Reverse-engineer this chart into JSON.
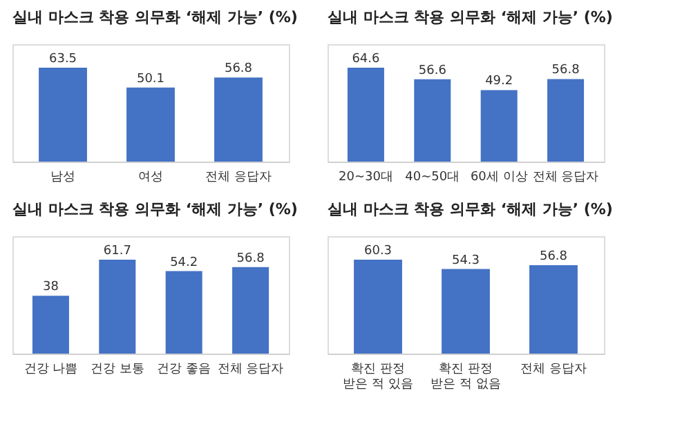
{
  "chart_data": [
    {
      "type": "bar",
      "title": "실내 마스크 착용 의무화 ‘해제 가능’ (%)",
      "categories": [
        "남성",
        "여성",
        "전체 응답자"
      ],
      "values": [
        63.5,
        50.1,
        56.8
      ],
      "color": "#4472c4",
      "data_labels": true,
      "tick_labels": "x",
      "grid": false,
      "legend": false
    },
    {
      "type": "bar",
      "title": "실내 마스크 착용 의무화 ‘해제 가능’ (%)",
      "categories": [
        "20~30대",
        "40~50대",
        "60세 이상",
        "전체 응답자"
      ],
      "values": [
        64.6,
        56.6,
        49.2,
        56.8
      ],
      "color": "#4472c4",
      "data_labels": true,
      "tick_labels": "x",
      "grid": false,
      "legend": false
    },
    {
      "type": "bar",
      "title": "실내 마스크 착용 의무화 ‘해제 가능’ (%)",
      "categories": [
        "건강 나쁨",
        "건강 보통",
        "건강 좋음",
        "전체 응답자"
      ],
      "values": [
        38,
        61.7,
        54.2,
        56.8
      ],
      "color": "#4472c4",
      "data_labels": true,
      "tick_labels": "x",
      "grid": false,
      "legend": false
    },
    {
      "type": "bar",
      "title": "실내 마스크 착용 의무화 ‘해제 가능’ (%)",
      "categories": [
        "확진 판정\n받은 적 있음",
        "확진 판정\n받은 적 없음",
        "전체 응답자"
      ],
      "values": [
        60.3,
        54.3,
        56.8
      ],
      "color": "#4472c4",
      "data_labels": true,
      "tick_labels": "x",
      "grid": false,
      "legend": false
    }
  ]
}
